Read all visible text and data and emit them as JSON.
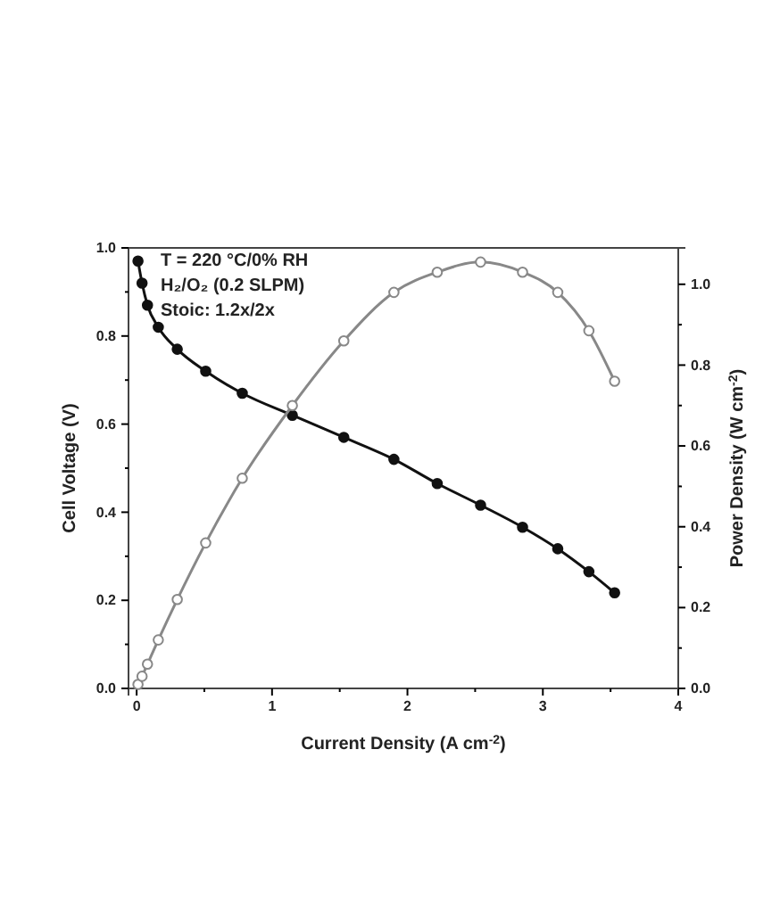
{
  "chart_data": {
    "type": "line",
    "xlabel": "Current Density (A cm$^{-2}$)",
    "ylabel": "Cell Voltage (V)",
    "y2label": "Power Density (W cm$^{-2}$)",
    "annotations": [
      "T = 220 °C/0% RH",
      "H₂/O₂ (0.2 SLPM)",
      "Stoic: 1.2x/2x"
    ],
    "x": [
      0.01,
      0.04,
      0.08,
      0.16,
      0.3,
      0.51,
      0.78,
      1.15,
      1.53,
      1.9,
      2.22,
      2.54,
      2.85,
      3.11,
      3.34,
      3.53
    ],
    "series": [
      {
        "color": "#111111",
        "values": [
          0.97,
          0.92,
          0.87,
          0.82,
          0.77,
          0.72,
          0.67,
          0.62,
          0.57,
          0.52,
          0.465,
          0.416,
          0.366,
          0.317,
          0.265,
          0.217
        ]
      },
      {
        "color": "#888888",
        "axis": "y2",
        "values": [
          0.01,
          0.03,
          0.06,
          0.12,
          0.22,
          0.36,
          0.52,
          0.7,
          0.86,
          0.98,
          1.03,
          1.055,
          1.03,
          0.98,
          0.885,
          0.76
        ]
      }
    ],
    "xlim": [
      -0.06,
      4
    ],
    "xticks": [
      0,
      {
        "value": 0.5,
        "label": null
      },
      1,
      {
        "value": 1.5,
        "label": null
      },
      2,
      {
        "value": 2.5,
        "label": null
      },
      3,
      {
        "value": 3.5,
        "label": null
      },
      4
    ],
    "ylim": [
      0,
      1
    ],
    "yticks": [
      {
        "value": 0,
        "label": "0.0"
      },
      {
        "value": 0.1,
        "label": null
      },
      {
        "value": 0.2,
        "label": "0.2"
      },
      {
        "value": 0.3,
        "label": null
      },
      {
        "value": 0.4,
        "label": "0.4"
      },
      {
        "value": 0.5,
        "label": null
      },
      {
        "value": 0.6,
        "label": "0.6"
      },
      {
        "value": 0.7,
        "label": null
      },
      {
        "value": 0.8,
        "label": "0.8"
      },
      {
        "value": 0.9,
        "label": null
      },
      {
        "value": 1,
        "label": "1.0"
      }
    ],
    "y2lim": [
      0,
      1.09
    ],
    "y2ticks": [
      {
        "value": 0,
        "label": "0.0"
      },
      {
        "value": 0.1,
        "label": null
      },
      {
        "value": 0.2,
        "label": "0.2"
      },
      {
        "value": 0.3,
        "label": null
      },
      {
        "value": 0.4,
        "label": "0.4"
      },
      {
        "value": 0.5,
        "label": null
      },
      {
        "value": 0.6,
        "label": "0.6"
      },
      {
        "value": 0.7,
        "label": null
      },
      {
        "value": 0.8,
        "label": "0.8"
      },
      {
        "value": 0.9,
        "label": null
      },
      {
        "value": 1,
        "label": "1.0"
      }
    ],
    "marker": "circle",
    "line_style": "solid",
    "grid": false
  }
}
